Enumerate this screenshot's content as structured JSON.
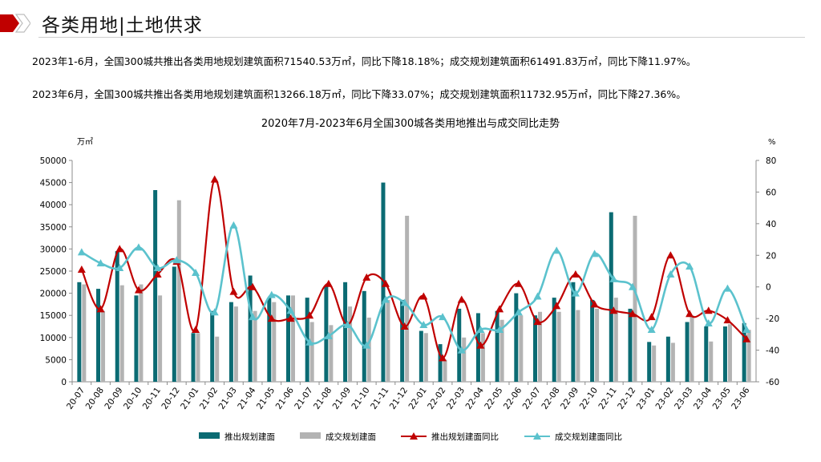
{
  "header": {
    "title": "各类用地|土地供求"
  },
  "summary": {
    "line1": "2023年1-6月，全国300城共推出各类用地规划建筑面积71540.53万㎡，同比下降18.18%；成交规划建筑面积61491.83万㎡，同比下降11.97%。",
    "line2": "2023年6月，全国300城共推出各类用地规划建筑面积13266.18万㎡，同比下降33.07%；成交规划建筑面积11732.95万㎡，同比下降27.36%。"
  },
  "colors": {
    "supply_bar": "#0b6b73",
    "deal_bar": "#b3b3b3",
    "supply_line": "#c00000",
    "deal_line": "#5bc2cd",
    "logo_red": "#c00000"
  },
  "chart_data": {
    "type": "bar",
    "title": "2020年7月-2023年6月全国300城各类用地推出与成交同比走势",
    "left_unit": "万㎡",
    "right_unit": "%",
    "ylim": [
      0,
      50000
    ],
    "y2lim": [
      -60,
      80
    ],
    "yticks": [
      0,
      5000,
      10000,
      15000,
      20000,
      25000,
      30000,
      35000,
      40000,
      45000,
      50000
    ],
    "y2ticks": [
      -60,
      -40,
      -20,
      0,
      20,
      40,
      60,
      80
    ],
    "legend_position": "bottom",
    "categories": [
      "20-07",
      "20-08",
      "20-09",
      "20-10",
      "20-11",
      "20-12",
      "21-01",
      "21-02",
      "21-03",
      "21-04",
      "21-05",
      "21-06",
      "21-07",
      "21-08",
      "21-09",
      "21-10",
      "21-11",
      "21-12",
      "22-01",
      "22-02",
      "22-03",
      "22-04",
      "22-05",
      "22-06",
      "22-07",
      "22-08",
      "22-09",
      "22-10",
      "22-11",
      "22-12",
      "23-01",
      "23-02",
      "23-03",
      "23-04",
      "23-05",
      "23-06"
    ],
    "series": [
      {
        "name": "推出规划建面",
        "kind": "bar",
        "axis": "left",
        "values": [
          22500,
          21000,
          29500,
          19500,
          43300,
          26000,
          11000,
          16000,
          18000,
          24000,
          19000,
          19500,
          19000,
          21500,
          22500,
          20500,
          45000,
          18500,
          11500,
          8500,
          16500,
          15500,
          16000,
          20000,
          15000,
          19000,
          22500,
          18500,
          38300,
          16500,
          9000,
          10200,
          13500,
          12500,
          12500,
          13266
        ]
      },
      {
        "name": "成交规划建面",
        "kind": "bar",
        "axis": "left",
        "values": [
          22000,
          16000,
          21800,
          22000,
          19500,
          41000,
          11000,
          10200,
          17000,
          16000,
          18000,
          19500,
          13500,
          12800,
          17000,
          14500,
          18500,
          37500,
          11000,
          5000,
          10000,
          11000,
          14000,
          15000,
          15800,
          15800,
          16200,
          16500,
          19000,
          37500,
          8200,
          8800,
          15000,
          9100,
          13000,
          11733
        ]
      },
      {
        "name": "推出规划建面同比",
        "kind": "line",
        "axis": "right",
        "values": [
          11,
          -14,
          24,
          -2,
          8,
          16,
          -27,
          68,
          -3,
          0,
          -20,
          -20,
          -18,
          2,
          -24,
          6,
          2,
          -25,
          -6,
          -45,
          -8,
          -37,
          -14,
          2,
          -22,
          -12,
          8,
          -11,
          -15,
          -17,
          -19,
          20,
          -17,
          -15,
          -21,
          -33
        ]
      },
      {
        "name": "成交规划建面同比",
        "kind": "line",
        "axis": "right",
        "values": [
          22,
          15,
          12,
          25,
          12,
          17,
          9,
          -16,
          39,
          -19,
          -5,
          -15,
          -35,
          -31,
          -24,
          -37,
          -8,
          -10,
          -24,
          -19,
          -40,
          -27,
          -27,
          -16,
          -6,
          23,
          -4,
          21,
          5,
          0,
          -27,
          8,
          13,
          -23,
          -1,
          -27
        ]
      }
    ]
  }
}
